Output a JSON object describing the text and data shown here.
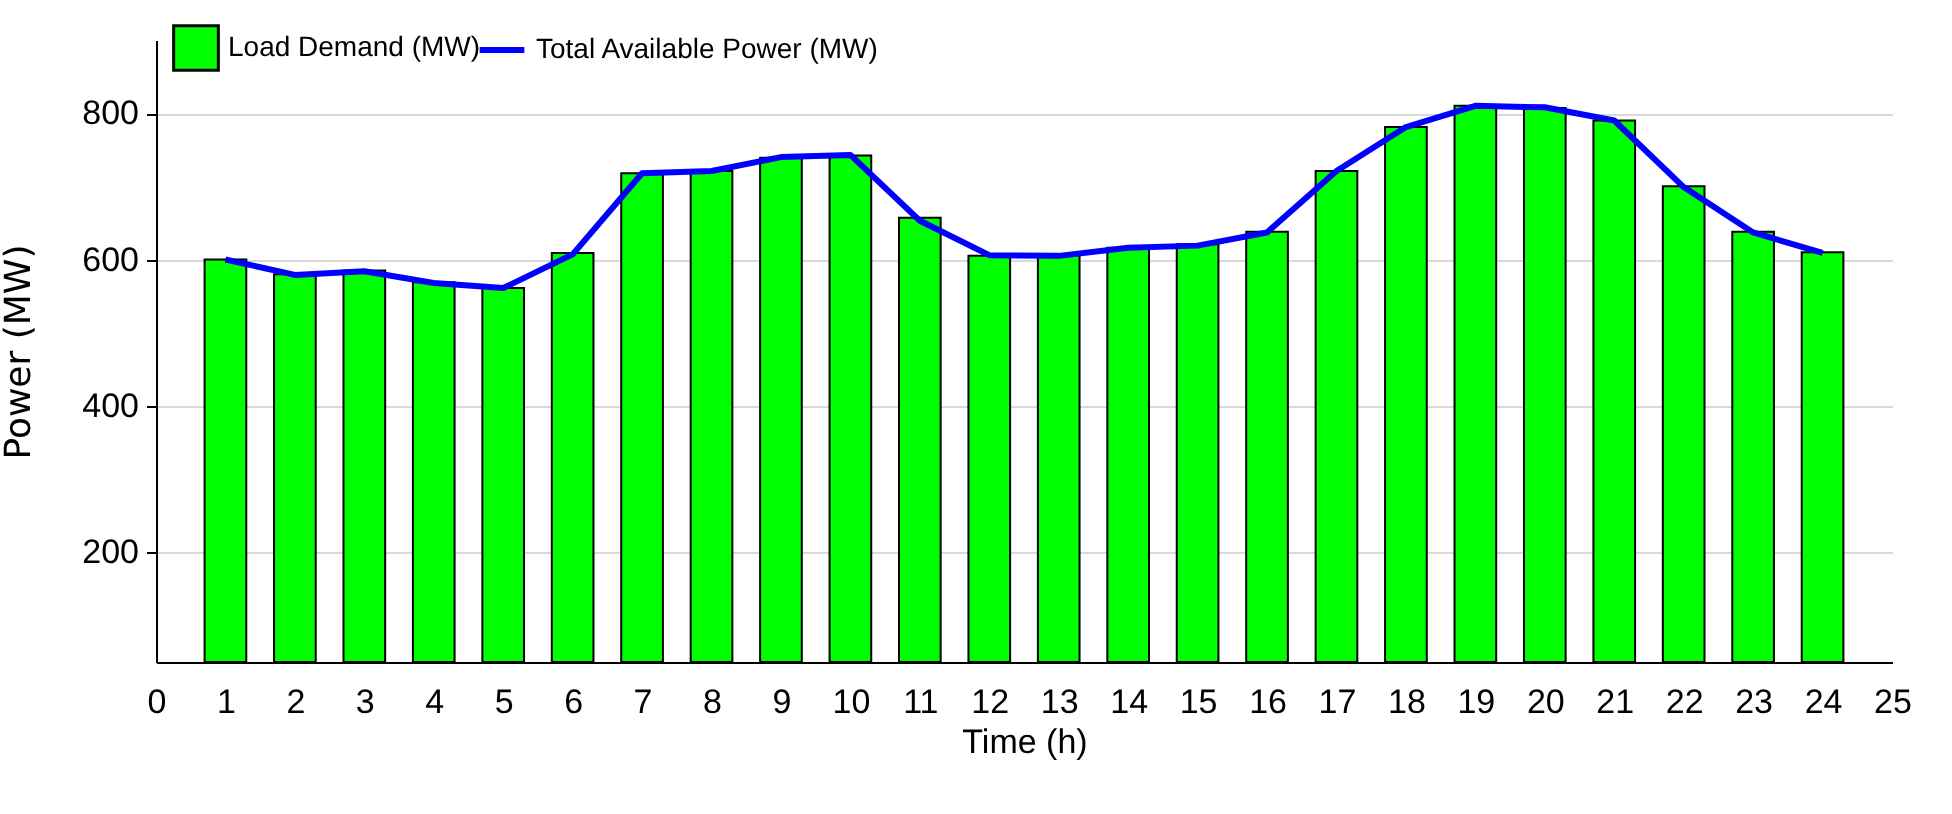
{
  "chart_data": {
    "type": "bar",
    "xlabel": "Time (h)",
    "ylabel": "Power (MW)",
    "x": [
      1,
      2,
      3,
      4,
      5,
      6,
      7,
      8,
      9,
      10,
      11,
      12,
      13,
      14,
      15,
      16,
      17,
      18,
      19,
      20,
      21,
      22,
      23,
      24
    ],
    "series": [
      {
        "name": "Load Demand (MW)",
        "color": "#00ff00",
        "values": [
          600,
          580,
          585,
          569,
          561,
          609,
          718,
          721,
          739,
          742,
          657,
          605,
          606,
          616,
          621,
          638,
          721,
          781,
          810,
          807,
          790,
          700,
          638,
          610
        ]
      },
      {
        "name": "Total Available Power  (MW)",
        "type": "line",
        "color": "#0000ff",
        "values": [
          600,
          579,
          584,
          568,
          561,
          607,
          718,
          721,
          740,
          743,
          653,
          606,
          605,
          616,
          619,
          637,
          721,
          781,
          810,
          808,
          790,
          699,
          637,
          609
        ]
      }
    ],
    "xlim": [
      0,
      25
    ],
    "xticks": [
      0,
      1,
      2,
      3,
      4,
      5,
      6,
      7,
      8,
      9,
      10,
      11,
      12,
      13,
      14,
      15,
      16,
      17,
      18,
      19,
      20,
      21,
      22,
      23,
      24,
      25
    ],
    "ylim": [
      50,
      900
    ],
    "yticks": [
      200,
      400,
      600,
      800
    ],
    "grid": "y",
    "legend": "top left"
  }
}
